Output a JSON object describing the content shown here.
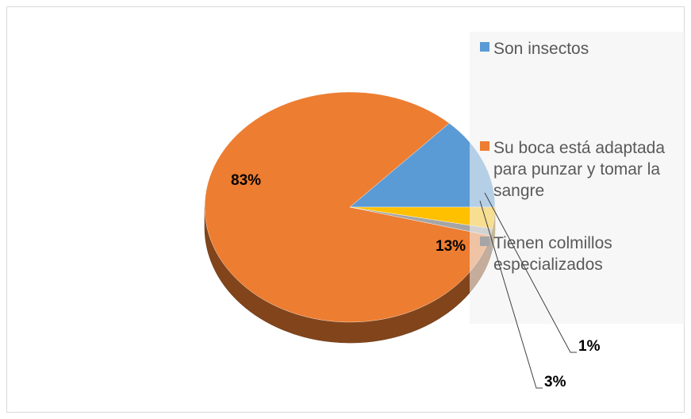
{
  "chart_data": {
    "type": "pie",
    "three_d": true,
    "legend_position": "right",
    "categories": [
      "Son insectos",
      "Su boca está adaptada para punzar y tomar la sangre",
      "Tienen colmillos especializados"
    ],
    "values": [
      13,
      83,
      1
    ],
    "extra_slice_value": 3,
    "labels": [
      "13%",
      "83%",
      "1%",
      "3%"
    ],
    "colors": [
      "#5B9BD5",
      "#ED7D31",
      "#A5A5A5",
      "#FFC000"
    ],
    "legend": [
      {
        "label_lines": [
          "Son insectos"
        ],
        "color": "#5B9BD5"
      },
      {
        "label_lines": [
          "Su boca está adaptada",
          "para punzar y tomar la",
          "sangre"
        ],
        "color": "#ED7D31"
      },
      {
        "label_lines": [
          "Tienen colmillos",
          "especializados"
        ],
        "color": "#A5A5A5"
      }
    ]
  }
}
